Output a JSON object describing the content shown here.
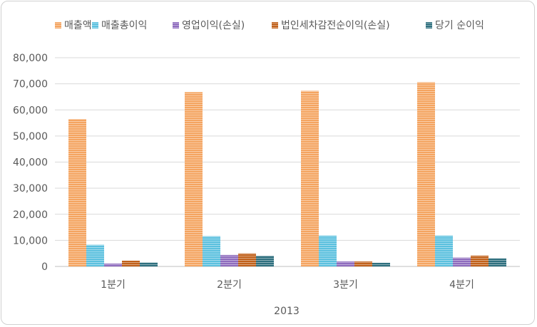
{
  "chart_data": {
    "type": "bar",
    "categories": [
      "1분기",
      "2분기",
      "3분기",
      "4분기"
    ],
    "xlabel": "2013",
    "ylim": [
      0,
      80000
    ],
    "yticks": [
      "0",
      "10,000",
      "20,000",
      "30,000",
      "40,000",
      "50,000",
      "60,000",
      "70,000",
      "80,000"
    ],
    "grid": true,
    "legend_position": "top",
    "series": [
      {
        "name": "매출액",
        "color": "#f4a460",
        "values": [
          56500,
          66800,
          67300,
          70600
        ]
      },
      {
        "name": "매출총이익",
        "color": "#5bc0de",
        "values": [
          8300,
          11600,
          11800,
          11800
        ]
      },
      {
        "name": "영업이익(손실)",
        "color": "#8e6bbd",
        "values": [
          1100,
          4400,
          1900,
          3400
        ]
      },
      {
        "name": "법인세차감전순이익(손실)",
        "color": "#c0601a",
        "values": [
          2200,
          5000,
          1900,
          4200
        ]
      },
      {
        "name": "당기 순이익",
        "color": "#2e6f7e",
        "values": [
          1500,
          4100,
          1400,
          3100
        ]
      }
    ]
  }
}
